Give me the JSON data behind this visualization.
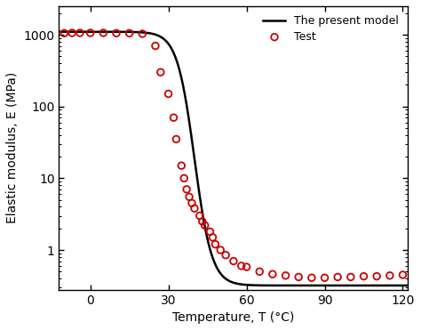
{
  "xlabel": "Temperature, T (°C)",
  "ylabel": "Elastic modulus, E (MPa)",
  "xlim": [
    -12,
    122
  ],
  "ylim_log": [
    0.28,
    2500
  ],
  "xticks": [
    0,
    30,
    60,
    90,
    120
  ],
  "xtick_labels": [
    "0",
    "30",
    "60",
    "90",
    "120"
  ],
  "yticks": [
    1,
    10,
    100,
    1000
  ],
  "model_color": "#000000",
  "test_color": "#cc0000",
  "legend_model": "The present model",
  "legend_test": "Test",
  "sigmoid_E0": 1100,
  "sigmoid_Einf": 0.32,
  "sigmoid_T0": 40,
  "sigmoid_k": 0.3,
  "test_data": [
    [
      -10,
      1050
    ],
    [
      -7,
      1060
    ],
    [
      -4,
      1060
    ],
    [
      0,
      1060
    ],
    [
      5,
      1060
    ],
    [
      10,
      1050
    ],
    [
      15,
      1050
    ],
    [
      20,
      1030
    ],
    [
      25,
      700
    ],
    [
      27,
      300
    ],
    [
      30,
      150
    ],
    [
      32,
      70
    ],
    [
      33,
      35
    ],
    [
      35,
      15
    ],
    [
      36,
      10
    ],
    [
      37,
      7.0
    ],
    [
      38,
      5.5
    ],
    [
      39,
      4.5
    ],
    [
      40,
      3.8
    ],
    [
      42,
      3.0
    ],
    [
      43,
      2.5
    ],
    [
      44,
      2.2
    ],
    [
      46,
      1.8
    ],
    [
      47,
      1.5
    ],
    [
      48,
      1.2
    ],
    [
      50,
      1.0
    ],
    [
      52,
      0.85
    ],
    [
      55,
      0.7
    ],
    [
      58,
      0.6
    ],
    [
      60,
      0.58
    ],
    [
      65,
      0.5
    ],
    [
      70,
      0.46
    ],
    [
      75,
      0.44
    ],
    [
      80,
      0.42
    ],
    [
      85,
      0.41
    ],
    [
      90,
      0.41
    ],
    [
      95,
      0.42
    ],
    [
      100,
      0.42
    ],
    [
      105,
      0.43
    ],
    [
      110,
      0.43
    ],
    [
      115,
      0.44
    ],
    [
      120,
      0.45
    ]
  ]
}
